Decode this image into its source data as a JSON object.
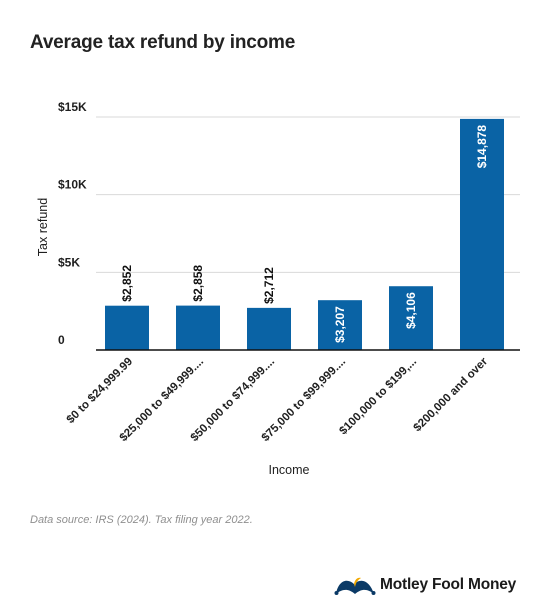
{
  "page": {
    "title": "Average tax refund by income",
    "source": "Data source: IRS (2024). Tax filing year 2022.",
    "brand": "Motley Fool Money",
    "brand_logo_icon": "jester-hat-icon"
  },
  "colors": {
    "bar": "#0a63a5",
    "grid": "#d9d9d9",
    "axis": "#111111",
    "logo": "#0b3a66"
  },
  "chart_data": {
    "type": "bar",
    "title": "Average tax refund by income",
    "xlabel": "Income",
    "ylabel": "Tax refund",
    "categories": [
      "$0 to $24,999.99",
      "$25,000 to $49,999....",
      "$50,000 to $74,999....",
      "$75,000 to $99,999....",
      "$100,000 to $199,...",
      "$200,000 and over"
    ],
    "values": [
      2852,
      2858,
      2712,
      3207,
      4106,
      14878
    ],
    "data_labels": [
      "$2,852",
      "$2,858",
      "$2,712",
      "$3,207",
      "$4,106",
      "$14,878"
    ],
    "label_inside": [
      false,
      false,
      false,
      true,
      true,
      true
    ],
    "ylim": [
      0,
      15000
    ],
    "yticks": [
      0,
      5000,
      10000,
      15000
    ],
    "ytick_labels": [
      "0",
      "$5K",
      "$10K",
      "$15K"
    ],
    "grid": true,
    "legend": "none"
  }
}
